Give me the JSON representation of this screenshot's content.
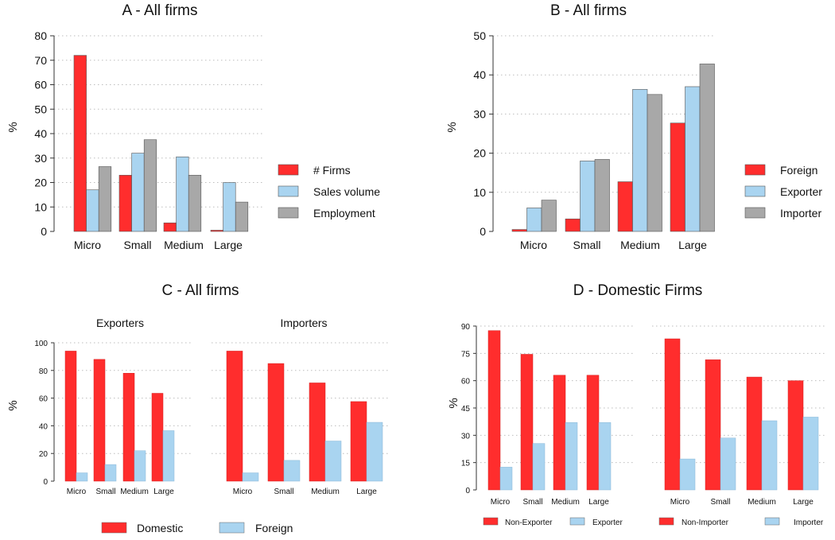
{
  "colors": {
    "red": "#ff2d2d",
    "blue": "#a9d4f0",
    "gray": "#a8a8a8"
  },
  "chart_data": [
    {
      "id": "A",
      "type": "bar",
      "title": "A - All firms",
      "ylabel": "%",
      "ylim": [
        0,
        80
      ],
      "yticks": [
        0,
        10,
        20,
        30,
        40,
        50,
        60,
        70,
        80
      ],
      "categories": [
        "Micro",
        "Small",
        "Medium",
        "Large"
      ],
      "series": [
        {
          "name": "# Firms",
          "color": "red",
          "values": [
            72,
            23,
            3.5,
            0.5
          ]
        },
        {
          "name": "Sales volume",
          "color": "blue",
          "values": [
            17,
            32,
            30.5,
            20
          ]
        },
        {
          "name": "Employment",
          "color": "gray",
          "values": [
            26.5,
            37.5,
            23,
            12
          ]
        }
      ],
      "legend": "right"
    },
    {
      "id": "B",
      "type": "bar",
      "title": "B - All firms",
      "ylabel": "%",
      "ylim": [
        0,
        50
      ],
      "yticks": [
        0,
        10,
        20,
        30,
        40,
        50
      ],
      "categories": [
        "Micro",
        "Small",
        "Medium",
        "Large"
      ],
      "series": [
        {
          "name": "Foreign",
          "color": "red",
          "values": [
            0.5,
            3.2,
            12.7,
            27.7
          ]
        },
        {
          "name": "Exporter",
          "color": "blue",
          "values": [
            6,
            18,
            36.3,
            37
          ]
        },
        {
          "name": "Importer",
          "color": "gray",
          "values": [
            8,
            18.4,
            35,
            42.8
          ]
        }
      ],
      "legend": "right"
    },
    {
      "id": "C",
      "type": "bar",
      "title": "C - All firms",
      "ylabel": "%",
      "ylim": [
        0,
        100
      ],
      "yticks": [
        0,
        20,
        40,
        60,
        80,
        100
      ],
      "panels": [
        {
          "title": "Exporters",
          "categories": [
            "Micro",
            "Small",
            "Medium",
            "Large"
          ],
          "series": [
            {
              "name": "Domestic",
              "color": "red",
              "values": [
                94,
                88,
                78,
                63.5
              ]
            },
            {
              "name": "Foreign",
              "color": "blue",
              "values": [
                6,
                12,
                22,
                36.5
              ]
            }
          ]
        },
        {
          "title": "Importers",
          "categories": [
            "Micro",
            "Small",
            "Medium",
            "Large"
          ],
          "series": [
            {
              "name": "Domestic",
              "color": "red",
              "values": [
                94,
                85,
                71,
                57.5
              ]
            },
            {
              "name": "Foreign",
              "color": "blue",
              "values": [
                6,
                15,
                29,
                42.5
              ]
            }
          ]
        }
      ],
      "legend_items": [
        {
          "name": "Domestic",
          "color": "red"
        },
        {
          "name": "Foreign",
          "color": "blue"
        }
      ],
      "legend": "bottom"
    },
    {
      "id": "D",
      "type": "bar",
      "title": "D - Domestic Firms",
      "ylabel": "%",
      "ylim": [
        0,
        90
      ],
      "yticks": [
        0,
        15,
        30,
        45,
        60,
        75,
        90
      ],
      "panels": [
        {
          "categories": [
            "Micro",
            "Small",
            "Medium",
            "Large"
          ],
          "series": [
            {
              "name": "Non-Exporter",
              "color": "red",
              "values": [
                87.5,
                74.5,
                63,
                63
              ]
            },
            {
              "name": "Exporter",
              "color": "blue",
              "values": [
                12.5,
                25.5,
                37,
                37
              ]
            }
          ]
        },
        {
          "categories": [
            "Micro",
            "Small",
            "Medium",
            "Large"
          ],
          "series": [
            {
              "name": "Non-Importer",
              "color": "red",
              "values": [
                83,
                71.5,
                62,
                60
              ]
            },
            {
              "name": "Importer",
              "color": "blue",
              "values": [
                17,
                28.5,
                38,
                40
              ]
            }
          ]
        }
      ],
      "legend_items": [
        {
          "name": "Non-Exporter",
          "color": "red"
        },
        {
          "name": "Exporter",
          "color": "blue"
        },
        {
          "name": "Non-Importer",
          "color": "red"
        },
        {
          "name": "Importer",
          "color": "blue"
        }
      ],
      "legend": "bottom"
    }
  ]
}
